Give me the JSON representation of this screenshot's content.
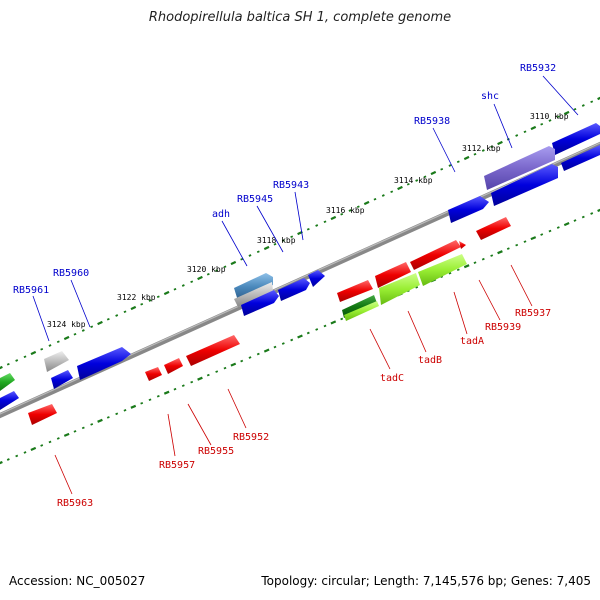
{
  "title": "Rhodopirellula baltica SH 1, complete genome",
  "footer": {
    "accession": "Accession: NC_005027",
    "summary": "Topology: circular; Length: 7,145,576 bp; Genes: 7,405"
  },
  "scale_ticks": [
    "3110 kbp",
    "3112 kbp",
    "3114 kbp",
    "3116 kbp",
    "3118 kbp",
    "3120 kbp",
    "3122 kbp",
    "3124 kbp"
  ],
  "gene_labels": {
    "forward": [
      "RB5932",
      "shc",
      "RB5938",
      "RB5943",
      "RB5945",
      "adh",
      "RB5960",
      "RB5961"
    ],
    "reverse": [
      "RB5937",
      "RB5939",
      "tadA",
      "tadB",
      "tadC",
      "RB5952",
      "RB5955",
      "RB5957",
      "RB5963"
    ]
  },
  "colors": {
    "forward_label": "#0000cc",
    "reverse_label": "#cc0000",
    "forward_gene": "#0000dd",
    "reverse_gene": "#ee0000",
    "tick": "#1a7a1a",
    "backbone": "#808080",
    "lime_gene": "#99ee33",
    "purple_gene": "#7b68cc",
    "steel_gene": "#4a88bb",
    "green_gene": "#22aa22",
    "gray_gene": "#bbbbbb"
  }
}
